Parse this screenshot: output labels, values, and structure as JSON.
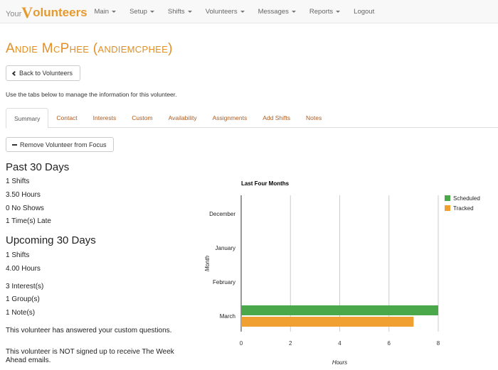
{
  "brand": {
    "prefix": "Your",
    "v": "V",
    "rest": "olunteers"
  },
  "nav": [
    {
      "label": "Main",
      "dropdown": true
    },
    {
      "label": "Setup",
      "dropdown": true
    },
    {
      "label": "Shifts",
      "dropdown": true
    },
    {
      "label": "Volunteers",
      "dropdown": true
    },
    {
      "label": "Messages",
      "dropdown": true
    },
    {
      "label": "Reports",
      "dropdown": true
    },
    {
      "label": "Logout",
      "dropdown": false
    }
  ],
  "page": {
    "title": "Andie McPhee (andiemcphee)",
    "back_label": "Back to Volunteers",
    "help_text": "Use the tabs below to manage the information for this volunteer.",
    "remove_label": "Remove Volunteer from Focus"
  },
  "tabs": [
    "Summary",
    "Contact",
    "Interests",
    "Custom",
    "Availability",
    "Assignments",
    "Add Shifts",
    "Notes"
  ],
  "active_tab": "Summary",
  "past": {
    "heading": "Past 30 Days",
    "shifts": "1 Shifts",
    "hours": "3.50 Hours",
    "no_shows": "0 No Shows",
    "late": "1 Time(s) Late"
  },
  "upcoming": {
    "heading": "Upcoming 30 Days",
    "shifts": "1 Shifts",
    "hours": "4.00 Hours"
  },
  "counts": {
    "interests": "3 Interest(s)",
    "groups": "1 Group(s)",
    "notes": "1 Note(s)"
  },
  "notices": {
    "custom": "This volunteer has answered your custom questions.",
    "week_ahead": "This volunteer is NOT signed up to receive The Week Ahead emails."
  },
  "colors": {
    "scheduled": "#4aa84a",
    "tracked": "#f0a030",
    "accent": "#e38f25"
  },
  "chart_data": {
    "type": "bar",
    "orientation": "horizontal",
    "title": "Last Four Months",
    "xlabel": "Hours",
    "ylabel": "Month",
    "categories": [
      "December",
      "January",
      "February",
      "March"
    ],
    "series": [
      {
        "name": "Scheduled",
        "values": [
          0,
          0,
          0,
          8
        ]
      },
      {
        "name": "Tracked",
        "values": [
          0,
          0,
          0,
          7
        ]
      }
    ],
    "xlim": [
      0,
      8
    ],
    "xticks": [
      0,
      2,
      4,
      6,
      8
    ],
    "grid": true,
    "legend": "top-right"
  }
}
